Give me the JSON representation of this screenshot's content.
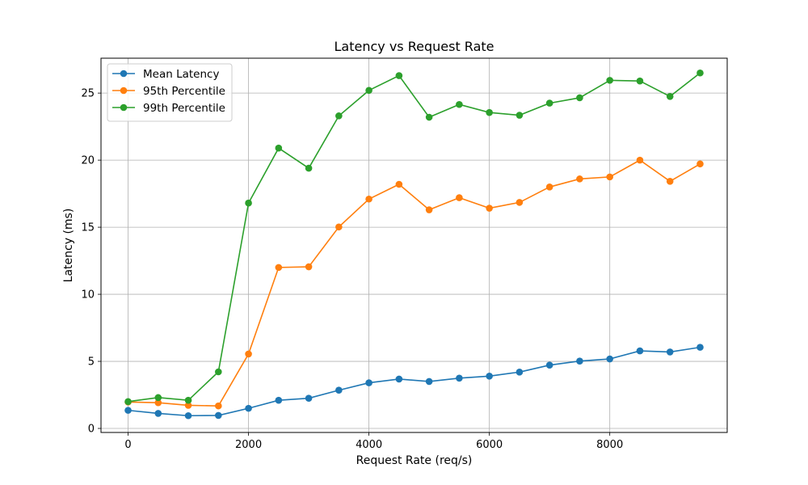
{
  "chart_data": {
    "type": "line",
    "title": "Latency vs Request Rate",
    "xlabel": "Request Rate (req/s)",
    "ylabel": "Latency (ms)",
    "xlim": [
      -450,
      9950
    ],
    "ylim": [
      -0.3,
      27.6
    ],
    "x_ticks": [
      0,
      2000,
      4000,
      6000,
      8000
    ],
    "y_ticks": [
      0,
      5,
      10,
      15,
      20,
      25
    ],
    "grid": true,
    "legend_position": "top-left",
    "x": [
      0,
      500,
      1000,
      1500,
      2000,
      2500,
      3000,
      3500,
      4000,
      4500,
      5000,
      5500,
      6000,
      6500,
      7000,
      7500,
      8000,
      8500,
      9000,
      9500
    ],
    "series": [
      {
        "name": "Mean Latency",
        "color": "#1f77b4",
        "values": [
          1.35,
          1.12,
          0.95,
          0.97,
          1.5,
          2.1,
          2.25,
          2.85,
          3.4,
          3.68,
          3.5,
          3.75,
          3.9,
          4.2,
          4.72,
          5.02,
          5.18,
          5.78,
          5.7,
          6.05
        ]
      },
      {
        "name": "95th Percentile",
        "color": "#ff7f0e",
        "values": [
          1.97,
          1.92,
          1.72,
          1.68,
          5.55,
          12.0,
          12.05,
          15.02,
          17.1,
          18.2,
          16.3,
          17.2,
          16.42,
          16.85,
          18.0,
          18.6,
          18.75,
          20.0,
          18.42,
          19.72
        ]
      },
      {
        "name": "99th Percentile",
        "color": "#2ca02c",
        "values": [
          2.0,
          2.3,
          2.1,
          4.22,
          16.8,
          20.9,
          19.4,
          23.3,
          25.2,
          26.3,
          23.2,
          24.15,
          23.55,
          23.35,
          24.25,
          24.65,
          25.95,
          25.9,
          24.75,
          26.5
        ]
      }
    ]
  }
}
